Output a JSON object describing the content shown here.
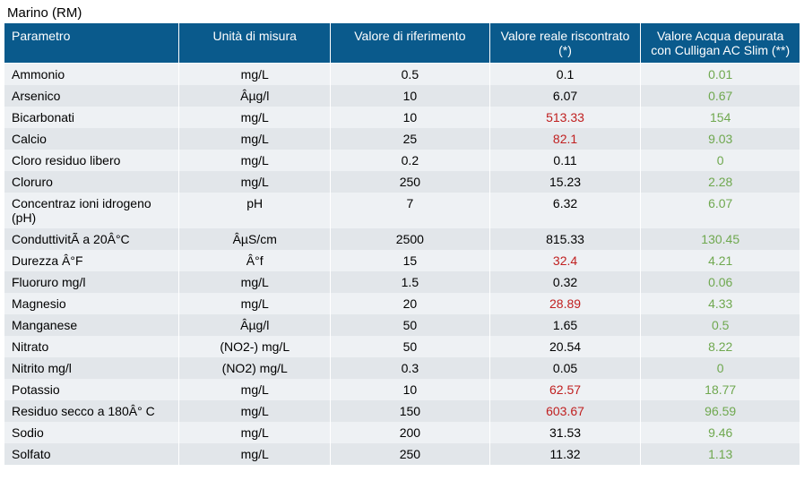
{
  "title": "Marino (RM)",
  "colors": {
    "header_bg": "#0a5a8c",
    "header_text": "#ffffff",
    "row_odd": "#eef1f4",
    "row_even": "#e2e6ea",
    "value_red": "#c02020",
    "value_green": "#6fa84f",
    "value_black": "#000000"
  },
  "columns": [
    {
      "key": "param",
      "label": "Parametro"
    },
    {
      "key": "unit",
      "label": "Unità di misura"
    },
    {
      "key": "ref",
      "label": "Valore di riferimento"
    },
    {
      "key": "real",
      "label": "Valore reale riscontrato (*)"
    },
    {
      "key": "slim",
      "label": "Valore Acqua depurata con Culligan AC Slim (**)"
    }
  ],
  "rows": [
    {
      "param": "Ammonio",
      "unit": "mg/L",
      "ref": "0.5",
      "real": "0.1",
      "real_color": "black",
      "slim": "0.01",
      "slim_color": "green"
    },
    {
      "param": "Arsenico",
      "unit": "Âµg/l",
      "ref": "10",
      "real": "6.07",
      "real_color": "black",
      "slim": "0.67",
      "slim_color": "green"
    },
    {
      "param": "Bicarbonati",
      "unit": "mg/L",
      "ref": "10",
      "real": "513.33",
      "real_color": "red",
      "slim": "154",
      "slim_color": "green"
    },
    {
      "param": "Calcio",
      "unit": "mg/L",
      "ref": "25",
      "real": "82.1",
      "real_color": "red",
      "slim": "9.03",
      "slim_color": "green"
    },
    {
      "param": "Cloro residuo libero",
      "unit": "mg/L",
      "ref": "0.2",
      "real": "0.11",
      "real_color": "black",
      "slim": "0",
      "slim_color": "green"
    },
    {
      "param": "Cloruro",
      "unit": "mg/L",
      "ref": "250",
      "real": "15.23",
      "real_color": "black",
      "slim": "2.28",
      "slim_color": "green"
    },
    {
      "param": "Concentraz ioni idrogeno (pH)",
      "unit": "pH",
      "ref": "7",
      "real": "6.32",
      "real_color": "black",
      "slim": "6.07",
      "slim_color": "green"
    },
    {
      "param": "ConduttivitÃ  a 20Â°C",
      "unit": "ÂµS/cm",
      "ref": "2500",
      "real": "815.33",
      "real_color": "black",
      "slim": "130.45",
      "slim_color": "green"
    },
    {
      "param": "Durezza Â°F",
      "unit": "Â°f",
      "ref": "15",
      "real": "32.4",
      "real_color": "red",
      "slim": "4.21",
      "slim_color": "green"
    },
    {
      "param": "Fluoruro mg/l",
      "unit": "mg/L",
      "ref": "1.5",
      "real": "0.32",
      "real_color": "black",
      "slim": "0.06",
      "slim_color": "green"
    },
    {
      "param": "Magnesio",
      "unit": "mg/L",
      "ref": "20",
      "real": "28.89",
      "real_color": "red",
      "slim": "4.33",
      "slim_color": "green"
    },
    {
      "param": "Manganese",
      "unit": "Âµg/l",
      "ref": "50",
      "real": "1.65",
      "real_color": "black",
      "slim": "0.5",
      "slim_color": "green"
    },
    {
      "param": "Nitrato",
      "unit": "(NO2-) mg/L",
      "ref": "50",
      "real": "20.54",
      "real_color": "black",
      "slim": "8.22",
      "slim_color": "green"
    },
    {
      "param": "Nitrito mg/l",
      "unit": "(NO2) mg/L",
      "ref": "0.3",
      "real": "0.05",
      "real_color": "black",
      "slim": "0",
      "slim_color": "green"
    },
    {
      "param": "Potassio",
      "unit": "mg/L",
      "ref": "10",
      "real": "62.57",
      "real_color": "red",
      "slim": "18.77",
      "slim_color": "green"
    },
    {
      "param": "Residuo secco a 180Â° C",
      "unit": "mg/L",
      "ref": "150",
      "real": "603.67",
      "real_color": "red",
      "slim": "96.59",
      "slim_color": "green"
    },
    {
      "param": "Sodio",
      "unit": "mg/L",
      "ref": "200",
      "real": "31.53",
      "real_color": "black",
      "slim": "9.46",
      "slim_color": "green"
    },
    {
      "param": "Solfato",
      "unit": "mg/L",
      "ref": "250",
      "real": "11.32",
      "real_color": "black",
      "slim": "1.13",
      "slim_color": "green"
    }
  ]
}
